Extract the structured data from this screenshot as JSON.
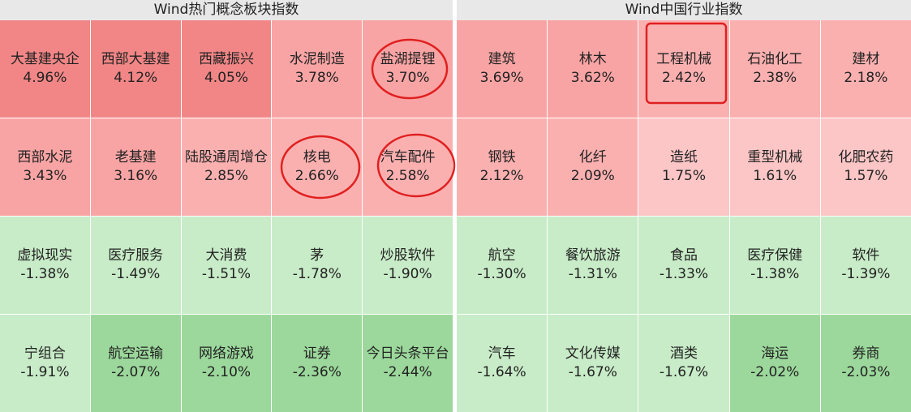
{
  "panels": [
    {
      "title": "Wind热门概念板块指数",
      "rows": [
        [
          {
            "name": "大基建央企",
            "change": "4.96%",
            "color": "#f28686"
          },
          {
            "name": "西部大基建",
            "change": "4.12%",
            "color": "#f28686"
          },
          {
            "name": "西藏振兴",
            "change": "4.05%",
            "color": "#f28686"
          },
          {
            "name": "水泥制造",
            "change": "3.78%",
            "color": "#f9a4a4"
          },
          {
            "name": "盐湖提锂",
            "change": "3.70%",
            "color": "#f9a4a4"
          }
        ],
        [
          {
            "name": "西部水泥",
            "change": "3.43%",
            "color": "#f9a4a4"
          },
          {
            "name": "老基建",
            "change": "3.16%",
            "color": "#f9a4a4"
          },
          {
            "name": "陆股通周增仓",
            "change": "2.85%",
            "color": "#fbb0b0"
          },
          {
            "name": "核电",
            "change": "2.66%",
            "color": "#fbb0b0"
          },
          {
            "name": "汽车配件",
            "change": "2.58%",
            "color": "#fbb0b0"
          }
        ],
        [
          {
            "name": "虚拟现实",
            "change": "-1.38%",
            "color": "#c8ecc8"
          },
          {
            "name": "医疗服务",
            "change": "-1.49%",
            "color": "#c8ecc8"
          },
          {
            "name": "大消费",
            "change": "-1.51%",
            "color": "#c8ecc8"
          },
          {
            "name": "茅",
            "change": "-1.78%",
            "color": "#c8ecc8"
          },
          {
            "name": "炒股软件",
            "change": "-1.90%",
            "color": "#c8ecc8"
          }
        ],
        [
          {
            "name": "宁组合",
            "change": "-1.91%",
            "color": "#c8ecc8"
          },
          {
            "name": "航空运输",
            "change": "-2.07%",
            "color": "#9cd89c"
          },
          {
            "name": "网络游戏",
            "change": "-2.10%",
            "color": "#9cd89c"
          },
          {
            "name": "证券",
            "change": "-2.36%",
            "color": "#9cd89c"
          },
          {
            "name": "今日头条平台",
            "change": "-2.44%",
            "color": "#9cd89c"
          }
        ]
      ]
    },
    {
      "title": "Wind中国行业指数",
      "rows": [
        [
          {
            "name": "建筑",
            "change": "3.69%",
            "color": "#f9a4a4"
          },
          {
            "name": "林木",
            "change": "3.62%",
            "color": "#f9a4a4"
          },
          {
            "name": "工程机械",
            "change": "2.42%",
            "color": "#fbb0b0"
          },
          {
            "name": "石油化工",
            "change": "2.38%",
            "color": "#fbb0b0"
          },
          {
            "name": "建材",
            "change": "2.18%",
            "color": "#fbb0b0"
          }
        ],
        [
          {
            "name": "钢铁",
            "change": "2.12%",
            "color": "#fbb0b0"
          },
          {
            "name": "化纤",
            "change": "2.09%",
            "color": "#fbb0b0"
          },
          {
            "name": "造纸",
            "change": "1.75%",
            "color": "#fcc6c6"
          },
          {
            "name": "重型机械",
            "change": "1.61%",
            "color": "#fcc6c6"
          },
          {
            "name": "化肥农药",
            "change": "1.57%",
            "color": "#fcc6c6"
          }
        ],
        [
          {
            "name": "航空",
            "change": "-1.30%",
            "color": "#c8ecc8"
          },
          {
            "name": "餐饮旅游",
            "change": "-1.31%",
            "color": "#c8ecc8"
          },
          {
            "name": "食品",
            "change": "-1.33%",
            "color": "#c8ecc8"
          },
          {
            "name": "医疗保健",
            "change": "-1.38%",
            "color": "#c8ecc8"
          },
          {
            "name": "软件",
            "change": "-1.39%",
            "color": "#c8ecc8"
          }
        ],
        [
          {
            "name": "汽车",
            "change": "-1.64%",
            "color": "#c8ecc8"
          },
          {
            "name": "文化传媒",
            "change": "-1.67%",
            "color": "#c8ecc8"
          },
          {
            "name": "酒类",
            "change": "-1.67%",
            "color": "#c8ecc8"
          },
          {
            "name": "海运",
            "change": "-2.02%",
            "color": "#9cd89c"
          },
          {
            "name": "券商",
            "change": "-2.03%",
            "color": "#9cd89c"
          }
        ]
      ]
    }
  ]
}
